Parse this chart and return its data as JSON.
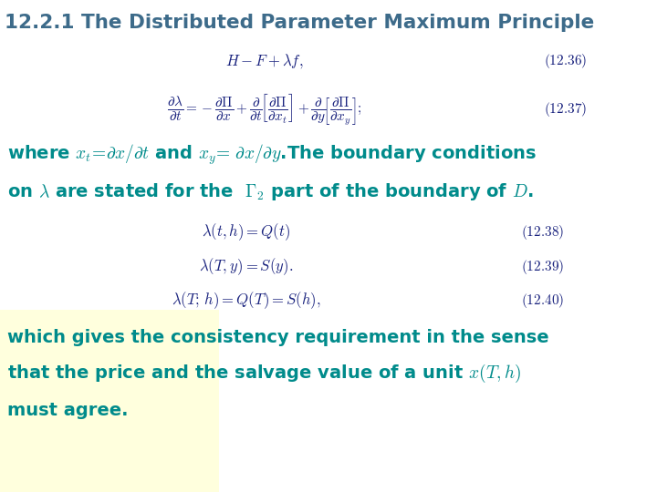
{
  "title": "12.2.1 The Distributed Parameter Maximum Principle",
  "title_color": "#3d6b8a",
  "title_fontsize": 15.5,
  "bg_color": "#ffffff",
  "yellow_bg_color": "#ffffdd",
  "teal_color": "#008b8b",
  "eq_color": "#1a237e",
  "figsize": [
    7.2,
    5.4
  ],
  "dpi": 100
}
